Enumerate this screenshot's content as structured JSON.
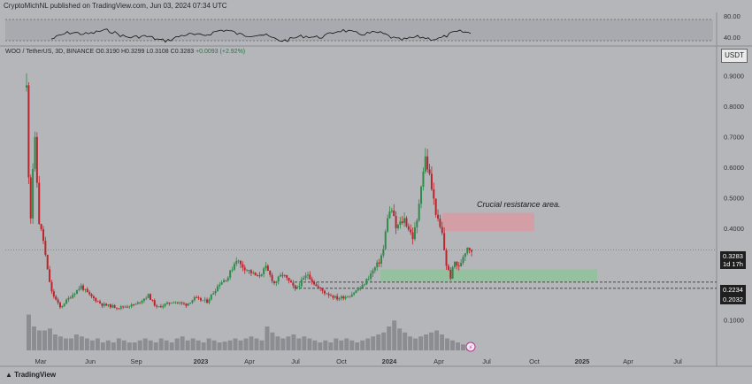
{
  "header": {
    "text": "CryptoMichNL published on TradingView.com, Jun 03, 2024 07:34 UTC"
  },
  "symbol_line": {
    "pair": "WOO / TetherUS, 3D, BINANCE",
    "ohlc": "O0.3190 H0.3299 L0.3108 C0.3283",
    "change": "+0.0093 (+2.92%)"
  },
  "currency_button": "USDT",
  "footer": {
    "brand": "TradingView"
  },
  "annotation": {
    "text": "Crucial resistance area."
  },
  "colors": {
    "background": "#b5b6ba",
    "up_candle": "#2e8b4a",
    "down_candle": "#b8262d",
    "volume": "#8c8d92",
    "resistance_zone": "#d99aa3",
    "support_zone": "#8fc39a",
    "rsi_line": "#111111"
  },
  "current_price": {
    "value": "0.3283",
    "countdown": "1d 17h"
  },
  "level_lines": [
    {
      "value": "0.2234",
      "price": 0.2234
    },
    {
      "value": "0.2032",
      "price": 0.2032
    }
  ],
  "rsi": {
    "ticks": [
      "80.00",
      "40.00"
    ]
  },
  "chart_data": {
    "type": "candlestick",
    "title": "",
    "ylabel": "",
    "xlabel": "",
    "y_scale": "linear",
    "ylim": [
      0.0,
      0.95
    ],
    "y_ticks": [
      "0.9000",
      "0.8000",
      "0.7000",
      "0.6000",
      "0.5000",
      "0.4000",
      "0.3000",
      "0.2000",
      "0.1000"
    ],
    "x_ticks": [
      "Mar",
      "Jun",
      "Sep",
      "2023",
      "Apr",
      "Jul",
      "Oct",
      "2024",
      "Apr",
      "Jul",
      "Oct",
      "2025",
      "Apr",
      "Jul"
    ],
    "price_path": [
      {
        "t": 0,
        "p": 0.86
      },
      {
        "t": 1,
        "p": 0.58
      },
      {
        "t": 2,
        "p": 0.44
      },
      {
        "t": 3,
        "p": 0.6
      },
      {
        "t": 4,
        "p": 0.68
      },
      {
        "t": 5,
        "p": 0.55
      },
      {
        "t": 6,
        "p": 0.42
      },
      {
        "t": 8,
        "p": 0.36
      },
      {
        "t": 10,
        "p": 0.26
      },
      {
        "t": 12,
        "p": 0.19
      },
      {
        "t": 16,
        "p": 0.14
      },
      {
        "t": 20,
        "p": 0.17
      },
      {
        "t": 26,
        "p": 0.21
      },
      {
        "t": 30,
        "p": 0.18
      },
      {
        "t": 36,
        "p": 0.15
      },
      {
        "t": 44,
        "p": 0.14
      },
      {
        "t": 52,
        "p": 0.15
      },
      {
        "t": 58,
        "p": 0.18
      },
      {
        "t": 62,
        "p": 0.14
      },
      {
        "t": 70,
        "p": 0.16
      },
      {
        "t": 76,
        "p": 0.15
      },
      {
        "t": 80,
        "p": 0.17
      },
      {
        "t": 86,
        "p": 0.16
      },
      {
        "t": 92,
        "p": 0.22
      },
      {
        "t": 96,
        "p": 0.24
      },
      {
        "t": 100,
        "p": 0.3
      },
      {
        "t": 102,
        "p": 0.28
      },
      {
        "t": 106,
        "p": 0.26
      },
      {
        "t": 110,
        "p": 0.24
      },
      {
        "t": 114,
        "p": 0.27
      },
      {
        "t": 118,
        "p": 0.22
      },
      {
        "t": 122,
        "p": 0.25
      },
      {
        "t": 128,
        "p": 0.2
      },
      {
        "t": 134,
        "p": 0.25
      },
      {
        "t": 138,
        "p": 0.21
      },
      {
        "t": 142,
        "p": 0.19
      },
      {
        "t": 148,
        "p": 0.17
      },
      {
        "t": 154,
        "p": 0.18
      },
      {
        "t": 160,
        "p": 0.21
      },
      {
        "t": 164,
        "p": 0.25
      },
      {
        "t": 168,
        "p": 0.29
      },
      {
        "t": 170,
        "p": 0.33
      },
      {
        "t": 172,
        "p": 0.44
      },
      {
        "t": 174,
        "p": 0.46
      },
      {
        "t": 176,
        "p": 0.4
      },
      {
        "t": 180,
        "p": 0.43
      },
      {
        "t": 184,
        "p": 0.37
      },
      {
        "t": 186,
        "p": 0.42
      },
      {
        "t": 188,
        "p": 0.55
      },
      {
        "t": 190,
        "p": 0.63
      },
      {
        "t": 192,
        "p": 0.57
      },
      {
        "t": 194,
        "p": 0.49
      },
      {
        "t": 196,
        "p": 0.42
      },
      {
        "t": 198,
        "p": 0.38
      },
      {
        "t": 200,
        "p": 0.28
      },
      {
        "t": 202,
        "p": 0.24
      },
      {
        "t": 204,
        "p": 0.29
      },
      {
        "t": 206,
        "p": 0.27
      },
      {
        "t": 208,
        "p": 0.31
      },
      {
        "t": 210,
        "p": 0.34
      },
      {
        "t": 212,
        "p": 0.3283
      }
    ],
    "volume": [
      0.9,
      0.6,
      0.5,
      0.5,
      0.55,
      0.4,
      0.35,
      0.3,
      0.3,
      0.4,
      0.35,
      0.3,
      0.25,
      0.3,
      0.2,
      0.25,
      0.2,
      0.3,
      0.25,
      0.2,
      0.2,
      0.25,
      0.3,
      0.25,
      0.2,
      0.3,
      0.25,
      0.2,
      0.3,
      0.35,
      0.25,
      0.3,
      0.25,
      0.2,
      0.3,
      0.25,
      0.2,
      0.22,
      0.25,
      0.3,
      0.25,
      0.3,
      0.35,
      0.3,
      0.25,
      0.6,
      0.45,
      0.35,
      0.3,
      0.35,
      0.4,
      0.3,
      0.35,
      0.3,
      0.25,
      0.2,
      0.25,
      0.2,
      0.3,
      0.25,
      0.3,
      0.25,
      0.2,
      0.25,
      0.3,
      0.35,
      0.4,
      0.45,
      0.6,
      0.75,
      0.55,
      0.45,
      0.35,
      0.3,
      0.35,
      0.4,
      0.45,
      0.5,
      0.4,
      0.3,
      0.25,
      0.2,
      0.15,
      0.1
    ],
    "zones": [
      {
        "name": "resistance",
        "from": 0.39,
        "to": 0.45
      },
      {
        "name": "support",
        "from": 0.225,
        "to": 0.265
      }
    ]
  }
}
